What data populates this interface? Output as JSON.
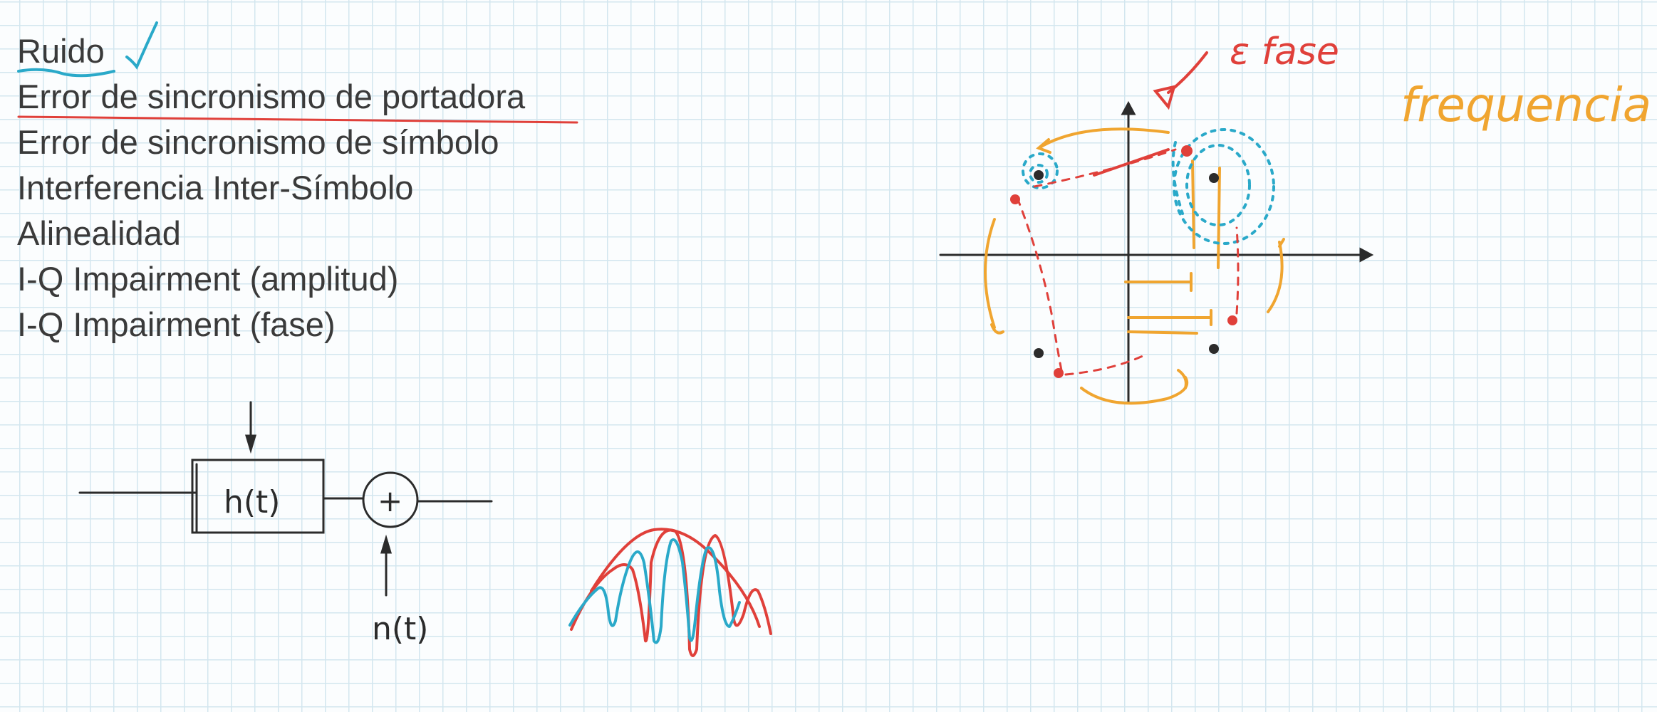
{
  "notes": {
    "items": [
      "Ruido",
      "Error de sincronismo de portadora",
      "Error de sincronismo de símbolo",
      "Interferencia Inter-Símbolo",
      "Alinealidad",
      "I-Q Impairment (amplitud)",
      "I-Q Impairment (fase)"
    ]
  },
  "annotations": {
    "phase_error": "ε fase",
    "frequency": "frequencia",
    "channel_block": "h(t)",
    "adder": "+",
    "noise_input": "n(t)"
  },
  "colors": {
    "ink_black": "#2b2b2b",
    "ink_red": "#e0403a",
    "ink_blue": "#2aa9c9",
    "ink_orange": "#f0a530",
    "grid": "#d3e6ef",
    "paper": "#fbfdfe"
  }
}
